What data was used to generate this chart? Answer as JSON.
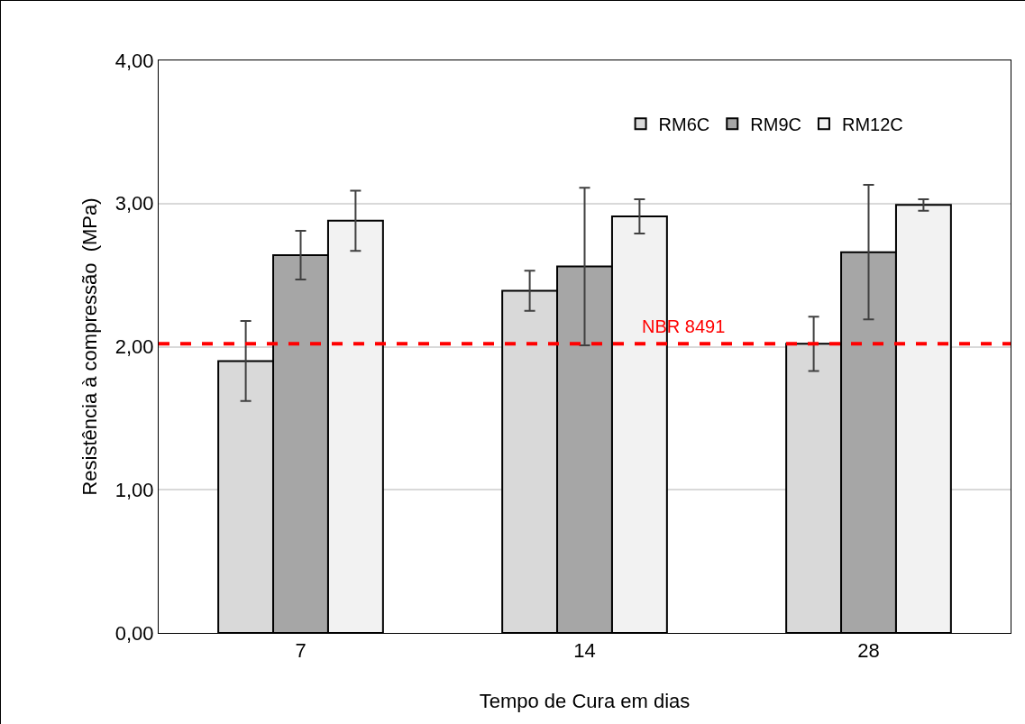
{
  "chart_data": {
    "type": "bar",
    "xlabel": "Tempo de Cura em dias",
    "ylabel": "Resistência à compressão  (MPa)",
    "categories": [
      "7",
      "14",
      "28"
    ],
    "series": [
      {
        "name": "RM6C",
        "color": "#d9d9d9",
        "values": [
          1.9,
          2.39,
          2.02
        ],
        "errors": [
          [
            1.62,
            2.18
          ],
          [
            2.25,
            2.53
          ],
          [
            1.83,
            2.21
          ]
        ]
      },
      {
        "name": "RM9C",
        "color": "#a6a6a6",
        "values": [
          2.64,
          2.56,
          2.66
        ],
        "errors": [
          [
            2.47,
            2.81
          ],
          [
            2.01,
            3.11
          ],
          [
            2.19,
            3.13
          ]
        ]
      },
      {
        "name": "RM12C",
        "color": "#f2f2f2",
        "values": [
          2.88,
          2.91,
          2.99
        ],
        "errors": [
          [
            2.67,
            3.09
          ],
          [
            2.79,
            3.03
          ],
          [
            2.95,
            3.03
          ]
        ]
      }
    ],
    "ylim": [
      0,
      4
    ],
    "yticks": [
      {
        "value": 0,
        "label": "0,00"
      },
      {
        "value": 1,
        "label": "1,00"
      },
      {
        "value": 2,
        "label": "2,00"
      },
      {
        "value": 3,
        "label": "3,00"
      },
      {
        "value": 4,
        "label": "4,00"
      }
    ],
    "grid": "y",
    "legend": "top right",
    "ref_lines": [
      {
        "axis": "y",
        "value": 2.02,
        "label": "NBR 8491",
        "color": "#ff0000",
        "line_style": "dashed"
      }
    ]
  }
}
